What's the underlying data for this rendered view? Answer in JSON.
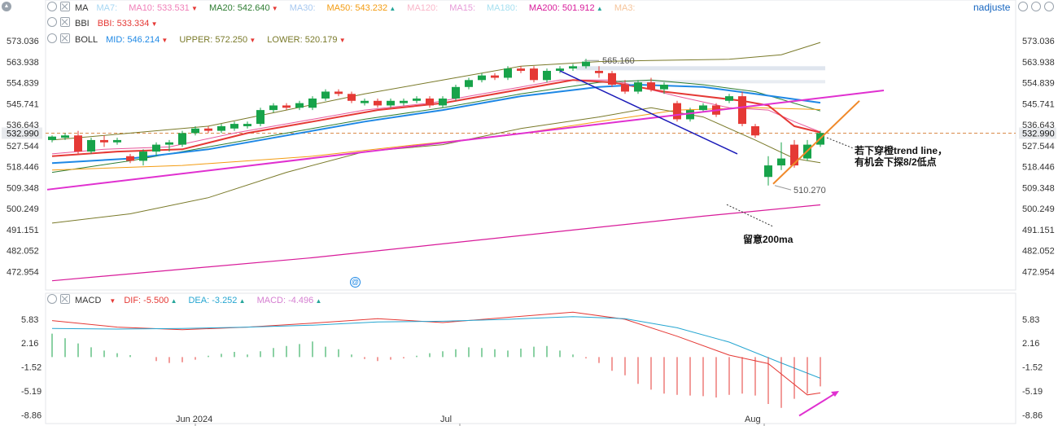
{
  "toolbar": {
    "right_label": "nadjuste",
    "collapse_glyph": "▲"
  },
  "legends": {
    "ma": {
      "name": "MA",
      "items": [
        {
          "label": "MA7:",
          "value": "",
          "color": "#a7d7f3",
          "dir": ""
        },
        {
          "label": "MA10:",
          "value": "533.531",
          "color": "#f07fb8",
          "dir": "dn"
        },
        {
          "label": "MA20:",
          "value": "542.640",
          "color": "#2e7d32",
          "dir": "dn"
        },
        {
          "label": "MA30:",
          "value": "",
          "color": "#a7c8f0",
          "dir": ""
        },
        {
          "label": "MA50:",
          "value": "543.232",
          "color": "#f39c12",
          "dir": "up"
        },
        {
          "label": "MA120:",
          "value": "",
          "color": "#f9b5c8",
          "dir": ""
        },
        {
          "label": "MA15:",
          "value": "",
          "color": "#e79bd8",
          "dir": ""
        },
        {
          "label": "MA180:",
          "value": "",
          "color": "#a7e0f0",
          "dir": ""
        },
        {
          "label": "MA200:",
          "value": "501.912",
          "color": "#d81b9a",
          "dir": "up"
        },
        {
          "label": "MA3:",
          "value": "",
          "color": "#f5c49a",
          "dir": ""
        }
      ]
    },
    "bbi": {
      "name": "BBI",
      "items": [
        {
          "label": "BBI:",
          "value": "533.334",
          "color": "#e53935",
          "dir": "dn"
        }
      ]
    },
    "boll": {
      "name": "BOLL",
      "items": [
        {
          "label": "MID:",
          "value": "546.214",
          "color": "#1e88e5",
          "dir": "dn"
        },
        {
          "label": "UPPER:",
          "value": "572.250",
          "color": "#7a7a2a",
          "dir": "dn"
        },
        {
          "label": "LOWER:",
          "value": "520.179",
          "color": "#7a7a2a",
          "dir": "dn"
        }
      ]
    },
    "macd": {
      "name": "MACD",
      "items": [
        {
          "label": "DIF:",
          "value": "-5.500",
          "color": "#e53935",
          "dir": "up"
        },
        {
          "label": "DEA:",
          "value": "-3.252",
          "color": "#26a6d1",
          "dir": "up"
        },
        {
          "label": "MACD:",
          "value": "-4.496",
          "color": "#d57fd1",
          "dir": "up"
        }
      ]
    }
  },
  "chart_data": [
    {
      "type": "candlestick",
      "y_ticks": [
        "573.036",
        "563.938",
        "554.839",
        "545.741",
        "536.643",
        "527.544",
        "518.446",
        "509.348",
        "500.249",
        "491.151",
        "482.052",
        "472.954"
      ],
      "ylim": [
        465,
        578
      ],
      "current_price": "532.990",
      "x_labels": [
        "Jun 2024",
        "Jul",
        "Aug"
      ],
      "candles": [
        [
          530,
          531.5,
          529,
          532
        ],
        [
          531,
          532,
          530,
          533
        ],
        [
          532,
          525,
          524,
          534
        ],
        [
          525,
          530,
          524,
          531
        ],
        [
          530,
          529,
          527,
          532
        ],
        [
          529,
          530,
          528,
          531
        ],
        [
          523,
          521,
          520,
          524
        ],
        [
          521,
          525,
          519,
          526
        ],
        [
          525,
          528,
          523,
          529
        ],
        [
          528,
          529,
          525,
          530
        ],
        [
          528,
          533,
          527,
          534
        ],
        [
          533,
          535,
          532,
          536
        ],
        [
          535,
          534,
          533,
          536
        ],
        [
          534,
          536,
          533,
          537
        ],
        [
          535,
          537,
          534,
          538
        ],
        [
          536,
          537,
          535,
          538
        ],
        [
          537,
          543,
          536,
          544
        ],
        [
          543,
          545,
          542,
          546
        ],
        [
          545,
          544,
          543,
          546
        ],
        [
          544,
          546,
          543,
          547
        ],
        [
          544,
          548,
          543,
          549
        ],
        [
          548,
          551,
          547,
          552
        ],
        [
          551,
          550,
          549,
          552
        ],
        [
          550,
          547,
          546,
          551
        ],
        [
          546,
          547,
          545,
          548
        ],
        [
          547,
          545,
          544,
          548
        ],
        [
          545,
          547,
          544,
          548
        ],
        [
          546,
          547,
          545,
          548
        ],
        [
          547,
          548,
          546,
          549
        ],
        [
          548,
          545,
          544,
          549
        ],
        [
          545,
          548,
          544,
          549
        ],
        [
          548,
          553,
          547,
          554
        ],
        [
          553,
          556,
          552,
          557
        ],
        [
          556,
          558,
          555,
          559
        ],
        [
          558,
          557,
          556,
          559
        ],
        [
          557,
          561,
          556,
          562
        ],
        [
          561,
          560,
          559,
          562
        ],
        [
          561,
          556,
          555,
          562
        ],
        [
          556,
          560,
          555,
          561
        ],
        [
          560,
          561,
          559,
          562
        ],
        [
          561,
          562,
          560,
          563
        ],
        [
          562,
          564,
          561,
          565.2
        ],
        [
          560,
          559,
          557,
          562
        ],
        [
          559,
          554,
          553,
          560
        ],
        [
          554,
          551,
          550,
          556
        ],
        [
          551,
          555,
          550,
          556
        ],
        [
          555,
          552,
          551,
          557
        ],
        [
          552,
          554,
          550,
          555
        ],
        [
          546,
          539,
          538,
          547
        ],
        [
          539,
          543,
          538,
          544
        ],
        [
          543,
          545,
          542,
          546
        ],
        [
          545,
          541,
          540,
          546
        ],
        [
          547,
          549,
          546,
          550
        ],
        [
          549,
          537,
          536,
          551
        ],
        [
          536,
          532,
          531,
          537
        ],
        [
          514,
          519,
          510.3,
          523
        ],
        [
          519,
          522,
          517,
          529
        ],
        [
          528,
          519,
          518,
          530
        ],
        [
          522,
          528,
          521,
          530
        ],
        [
          528,
          533,
          527,
          534
        ]
      ],
      "series": [
        {
          "name": "MA10",
          "values": [
            [
              0,
              524
            ],
            [
              4,
              526
            ],
            [
              9,
              527
            ],
            [
              14,
              533
            ],
            [
              19,
              538
            ],
            [
              24,
              543
            ],
            [
              29,
              546
            ],
            [
              34,
              551
            ],
            [
              39,
              556
            ],
            [
              43,
              556
            ],
            [
              48,
              549
            ],
            [
              52,
              544
            ],
            [
              55,
              543
            ],
            [
              57,
              538
            ],
            [
              59,
              533.5
            ]
          ]
        },
        {
          "name": "MA20",
          "values": [
            [
              0,
              516
            ],
            [
              6,
              521
            ],
            [
              12,
              527
            ],
            [
              18,
              533
            ],
            [
              24,
              539
            ],
            [
              30,
              544
            ],
            [
              36,
              550
            ],
            [
              42,
              555
            ],
            [
              46,
              556
            ],
            [
              50,
              554
            ],
            [
              54,
              551
            ],
            [
              59,
              542.6
            ]
          ]
        },
        {
          "name": "MA50",
          "values": [
            [
              0,
              517
            ],
            [
              10,
              519
            ],
            [
              20,
              523
            ],
            [
              28,
              528
            ],
            [
              35,
              532
            ],
            [
              42,
              538
            ],
            [
              48,
              543
            ],
            [
              54,
              544
            ],
            [
              59,
              543.2
            ]
          ]
        },
        {
          "name": "MA200",
          "values": [
            [
              0,
              469
            ],
            [
              10,
              474
            ],
            [
              20,
              479
            ],
            [
              30,
              485
            ],
            [
              40,
              491
            ],
            [
              50,
              497
            ],
            [
              59,
              501.9
            ]
          ]
        },
        {
          "name": "BBI",
          "values": [
            [
              0,
              523
            ],
            [
              5,
              525
            ],
            [
              10,
              526
            ],
            [
              15,
              533
            ],
            [
              20,
              538
            ],
            [
              25,
              543
            ],
            [
              30,
              546
            ],
            [
              35,
              551
            ],
            [
              40,
              556
            ],
            [
              43,
              555
            ],
            [
              47,
              551
            ],
            [
              50,
              549
            ],
            [
              53,
              547
            ],
            [
              55,
              545
            ],
            [
              57,
              536
            ],
            [
              59,
              533.3
            ]
          ]
        },
        {
          "name": "MID",
          "values": [
            [
              0,
              520
            ],
            [
              6,
              522
            ],
            [
              12,
              526
            ],
            [
              18,
              532
            ],
            [
              24,
              538
            ],
            [
              30,
              543
            ],
            [
              36,
              549
            ],
            [
              42,
              553
            ],
            [
              45,
              554
            ],
            [
              50,
              553
            ],
            [
              54,
              550
            ],
            [
              59,
              546.2
            ]
          ]
        },
        {
          "name": "UPPER",
          "values": [
            [
              0,
              530
            ],
            [
              6,
              533
            ],
            [
              12,
              536
            ],
            [
              18,
              543
            ],
            [
              24,
              550
            ],
            [
              30,
              556
            ],
            [
              36,
              562
            ],
            [
              42,
              564
            ],
            [
              46,
              564.5
            ],
            [
              52,
              565
            ],
            [
              56,
              567
            ],
            [
              59,
              572.3
            ]
          ]
        },
        {
          "name": "LOWER",
          "values": [
            [
              0,
              494
            ],
            [
              6,
              498
            ],
            [
              12,
              505
            ],
            [
              18,
              516
            ],
            [
              24,
              525
            ],
            [
              30,
              528
            ],
            [
              36,
              535
            ],
            [
              42,
              540
            ],
            [
              46,
              544
            ],
            [
              50,
              540
            ],
            [
              54,
              530
            ],
            [
              57,
              522
            ],
            [
              59,
              520.2
            ]
          ]
        }
      ],
      "value_labels": [
        "565.160",
        "510.270"
      ],
      "annotations": [
        "若下穿橙trend line，",
        "有机会下探8/2低点",
        "留意200ma"
      ]
    },
    {
      "type": "bar",
      "y_ticks": [
        "5.83",
        "2.16",
        "-1.52",
        "-5.19",
        "-8.86"
      ],
      "ylim": [
        -10.2,
        7.3
      ],
      "histogram": [
        3.6,
        2.9,
        2.1,
        1.5,
        1.0,
        0.6,
        0.3,
        0,
        -0.6,
        -0.9,
        -0.8,
        -0.4,
        0.2,
        0.5,
        0.8,
        0.4,
        0.9,
        1.4,
        1.7,
        2.0,
        2.4,
        1.6,
        1.2,
        0.4,
        -0.3,
        -0.6,
        -0.4,
        -0.2,
        0.2,
        0.6,
        0.9,
        1.2,
        1.5,
        1.4,
        1.2,
        1.0,
        1.3,
        1.6,
        1.7,
        1.0,
        0.4,
        -0.2,
        -0.9,
        -2.1,
        -2.8,
        -4.1,
        -5.0,
        -5.6,
        -5.8,
        -5.9,
        -6.0,
        -6.2,
        -5.8,
        -5.6,
        -5.9,
        -7.2,
        -7.8,
        -6.4,
        -5.6,
        -4.5
      ],
      "series": [
        {
          "name": "DIF",
          "values": [
            [
              0,
              5.6
            ],
            [
              5,
              4.6
            ],
            [
              10,
              4.2
            ],
            [
              15,
              4.6
            ],
            [
              20,
              5.2
            ],
            [
              25,
              5.9
            ],
            [
              30,
              5.3
            ],
            [
              35,
              6.1
            ],
            [
              40,
              6.9
            ],
            [
              44,
              5.8
            ],
            [
              48,
              3.2
            ],
            [
              52,
              0.3
            ],
            [
              55,
              -1.0
            ],
            [
              58,
              -5.8
            ],
            [
              59,
              -5.5
            ]
          ]
        },
        {
          "name": "DEA",
          "values": [
            [
              0,
              4.4
            ],
            [
              5,
              4.3
            ],
            [
              10,
              4.4
            ],
            [
              15,
              4.6
            ],
            [
              20,
              4.9
            ],
            [
              25,
              5.4
            ],
            [
              30,
              5.5
            ],
            [
              35,
              5.8
            ],
            [
              40,
              6.2
            ],
            [
              44,
              5.9
            ],
            [
              48,
              4.5
            ],
            [
              52,
              2.3
            ],
            [
              56,
              -0.9
            ],
            [
              59,
              -3.25
            ]
          ]
        }
      ]
    }
  ]
}
